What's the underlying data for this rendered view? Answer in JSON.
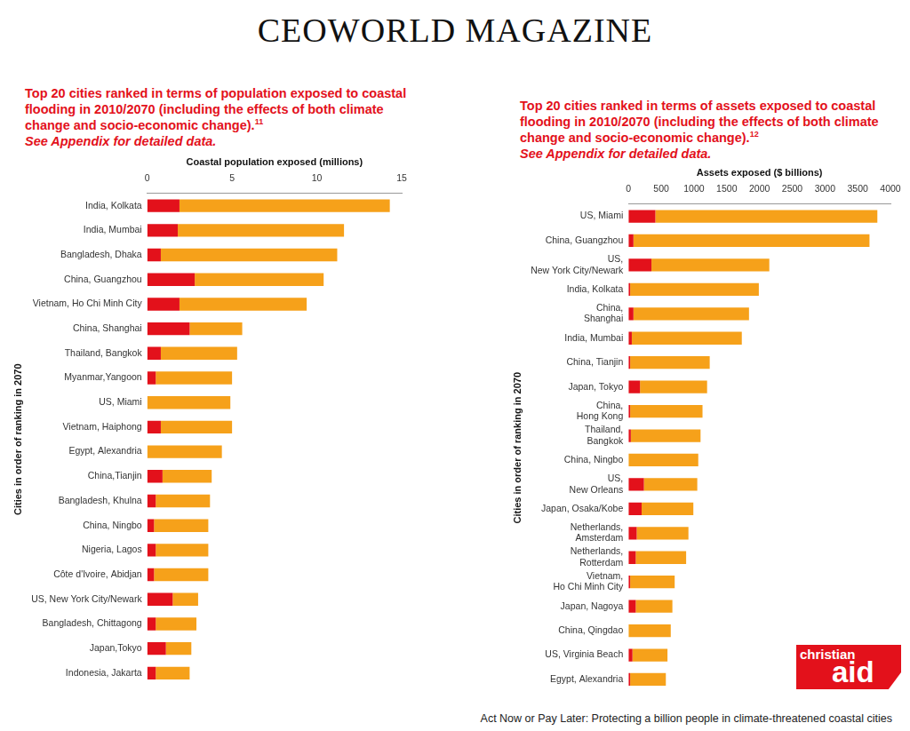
{
  "header": {
    "title": "CEOWORLD MAGAZINE"
  },
  "chart_data": [
    {
      "type": "bar",
      "title": "Top 20 cities ranked in terms of population exposed to coastal flooding in 2010/2070 (including the effects of both climate change and socio-economic change).",
      "title_note": "11",
      "subtitle": "See Appendix for detailed data.",
      "xlabel": "Coastal population exposed (millions)",
      "ylabel": "Cities in order of ranking in 2070",
      "orientation": "horizontal",
      "stacked": true,
      "grid": false,
      "xlim": [
        0,
        15
      ],
      "xticks": [
        0,
        5,
        10,
        15
      ],
      "categories": [
        "India, Kolkata",
        "India, Mumbai",
        "Bangladesh, Dhaka",
        "China, Guangzhou",
        "Vietnam, Ho Chi Minh City",
        "China, Shanghai",
        "Thailand, Bangkok",
        "Myanmar,Yangoon",
        "US, Miami",
        "Vietnam, Haiphong",
        "Egypt, Alexandria",
        "China,Tianjin",
        "Bangladesh, Khulna",
        "China, Ningbo",
        "Nigeria, Lagos",
        "Côte d'Ivoire, Abidjan",
        "US, New York City/Newark",
        "Bangladesh, Chittagong",
        "Japan,Tokyo",
        "Indonesia, Jakarta"
      ],
      "series": [
        {
          "color": "#e3111b",
          "values": [
            1.9,
            1.8,
            0.8,
            2.8,
            1.9,
            2.5,
            0.8,
            0.5,
            0,
            0.8,
            0,
            0.9,
            0.5,
            0.4,
            0.5,
            0.4,
            1.5,
            0.5,
            1.1,
            0.5
          ]
        },
        {
          "color": "#f6a11a",
          "values": [
            12.4,
            9.8,
            10.4,
            7.6,
            7.5,
            3.1,
            4.5,
            4.5,
            4.9,
            4.2,
            4.4,
            2.9,
            3.2,
            3.2,
            3.1,
            3.2,
            1.5,
            2.4,
            1.5,
            2.0
          ]
        }
      ]
    },
    {
      "type": "bar",
      "title": "Top 20 cities ranked in terms of assets exposed to coastal flooding in 2010/2070 (including the effects of both climate change and socio-economic change).",
      "title_note": "12",
      "subtitle": "See Appendix for detailed data.",
      "xlabel": "Assets exposed ($ billions)",
      "ylabel": "Cities in order of ranking in 2070",
      "orientation": "horizontal",
      "stacked": true,
      "grid": false,
      "xlim": [
        0,
        4000
      ],
      "xticks": [
        0,
        500,
        1000,
        1500,
        2000,
        2500,
        3000,
        3500,
        4000
      ],
      "categories": [
        "US, Miami",
        "China, Guangzhou",
        [
          "US,",
          "New York City/Newark"
        ],
        "India, Kolkata",
        [
          "China,",
          "Shanghai"
        ],
        "India, Mumbai",
        "China, Tianjin",
        "Japan, Tokyo",
        [
          "China,",
          "Hong Kong"
        ],
        [
          "Thailand,",
          "Bangkok"
        ],
        "China, Ningbo",
        [
          "US,",
          "New Orleans"
        ],
        "Japan, Osaka/Kobe",
        [
          "Netherlands,",
          "Amsterdam"
        ],
        [
          "Netherlands,",
          "Rotterdam"
        ],
        [
          "Vietnam,",
          "Ho Chi Minh City"
        ],
        "Japan, Nagoya",
        "China, Qingdao",
        "US, Virginia Beach",
        "Egypt, Alexandria"
      ],
      "series": [
        {
          "color": "#e3111b",
          "values": [
            410,
            75,
            350,
            25,
            75,
            50,
            25,
            175,
            25,
            35,
            0,
            235,
            200,
            125,
            110,
            25,
            110,
            0,
            60,
            25
          ]
        },
        {
          "color": "#f6a11a",
          "values": [
            3390,
            3605,
            1800,
            1965,
            1765,
            1680,
            1215,
            1025,
            1105,
            1065,
            1065,
            815,
            790,
            790,
            770,
            680,
            560,
            645,
            535,
            545
          ]
        }
      ]
    }
  ],
  "footer": {
    "text": "Act Now or Pay Later: Protecting a billion people in climate-threatened coastal cities",
    "logo": [
      "christian",
      "aid"
    ]
  }
}
